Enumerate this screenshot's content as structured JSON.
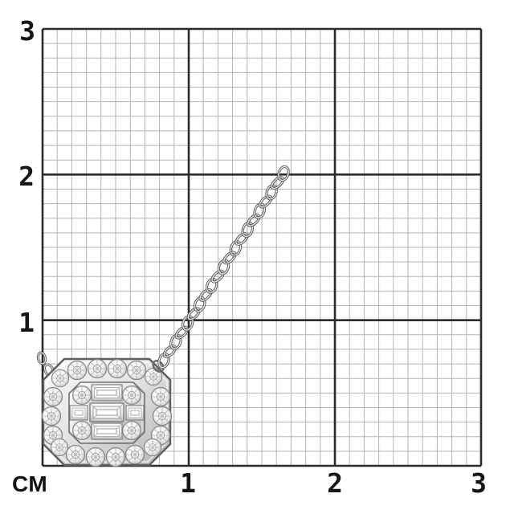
{
  "ruler": {
    "unit_label": "СМ",
    "x_tick_labels": [
      "1",
      "2",
      "3"
    ],
    "y_tick_labels": [
      "3",
      "2",
      "1"
    ],
    "cm_range_x": [
      0,
      3
    ],
    "cm_range_y": [
      0,
      3
    ],
    "minor_divisions_per_cm": 10
  },
  "subject": {
    "name": "white-gold-diamond-pendant-necklace",
    "elements": [
      "cable-chain",
      "round-diamond-halo-frame",
      "baguette-diamond-center-cluster"
    ]
  },
  "colors": {
    "background": "#ffffff",
    "grid_minor_line": "#b3b3b3",
    "grid_major_line": "#2b2b2b",
    "label_text": "#161616",
    "metal_light": "#f7f7f7",
    "metal_dark": "#b5b5b5",
    "metal_outline": "#5e5e5e"
  }
}
